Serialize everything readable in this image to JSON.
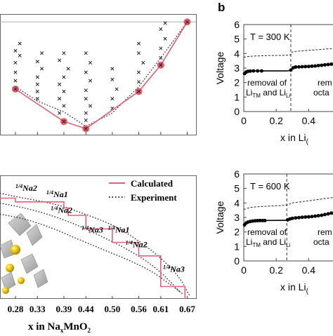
{
  "panel_label_b": "b",
  "chart_data": [
    {
      "id": "hull",
      "type": "scatter",
      "x_tick_labels": [
        "0.28",
        "0.33",
        "0.39",
        "0.44",
        "0.50",
        "0.56",
        "0.61",
        "0.67"
      ],
      "xlim": [
        0.245,
        0.69
      ],
      "ylim": [
        0.0,
        1.0
      ],
      "hull_points": [
        {
          "x": 0.28,
          "y": 0.38
        },
        {
          "x": 0.39,
          "y": 0.11
        },
        {
          "x": 0.44,
          "y": 0.05
        },
        {
          "x": 0.56,
          "y": 0.36
        },
        {
          "x": 0.61,
          "y": 0.58
        },
        {
          "x": 0.67,
          "y": 0.94
        }
      ],
      "experiment_line": [
        {
          "x": 0.28,
          "y": 0.4
        },
        {
          "x": 0.33,
          "y": 0.28
        },
        {
          "x": 0.39,
          "y": 0.19
        },
        {
          "x": 0.44,
          "y": 0.07
        },
        {
          "x": 0.5,
          "y": 0.18
        },
        {
          "x": 0.56,
          "y": 0.4
        },
        {
          "x": 0.61,
          "y": 0.64
        },
        {
          "x": 0.67,
          "y": 0.94
        }
      ],
      "structure_points": [
        {
          "x": 0.28,
          "y": 0.45
        },
        {
          "x": 0.28,
          "y": 0.52
        },
        {
          "x": 0.28,
          "y": 0.6
        },
        {
          "x": 0.29,
          "y": 0.66
        },
        {
          "x": 0.28,
          "y": 0.7
        },
        {
          "x": 0.29,
          "y": 0.76
        },
        {
          "x": 0.33,
          "y": 0.3
        },
        {
          "x": 0.33,
          "y": 0.36
        },
        {
          "x": 0.33,
          "y": 0.42
        },
        {
          "x": 0.33,
          "y": 0.48
        },
        {
          "x": 0.34,
          "y": 0.55
        },
        {
          "x": 0.33,
          "y": 0.61
        },
        {
          "x": 0.34,
          "y": 0.68
        },
        {
          "x": 0.38,
          "y": 0.18
        },
        {
          "x": 0.39,
          "y": 0.24
        },
        {
          "x": 0.38,
          "y": 0.3
        },
        {
          "x": 0.39,
          "y": 0.36
        },
        {
          "x": 0.38,
          "y": 0.42
        },
        {
          "x": 0.39,
          "y": 0.48
        },
        {
          "x": 0.4,
          "y": 0.55
        },
        {
          "x": 0.38,
          "y": 0.62
        },
        {
          "x": 0.39,
          "y": 0.68
        },
        {
          "x": 0.44,
          "y": 0.12
        },
        {
          "x": 0.44,
          "y": 0.18
        },
        {
          "x": 0.45,
          "y": 0.24
        },
        {
          "x": 0.44,
          "y": 0.3
        },
        {
          "x": 0.44,
          "y": 0.37
        },
        {
          "x": 0.45,
          "y": 0.45
        },
        {
          "x": 0.44,
          "y": 0.52
        },
        {
          "x": 0.45,
          "y": 0.6
        },
        {
          "x": 0.44,
          "y": 0.68
        },
        {
          "x": 0.5,
          "y": 0.22
        },
        {
          "x": 0.5,
          "y": 0.3
        },
        {
          "x": 0.51,
          "y": 0.38
        },
        {
          "x": 0.5,
          "y": 0.46
        },
        {
          "x": 0.5,
          "y": 0.55
        },
        {
          "x": 0.56,
          "y": 0.44
        },
        {
          "x": 0.56,
          "y": 0.52
        },
        {
          "x": 0.57,
          "y": 0.6
        },
        {
          "x": 0.56,
          "y": 0.68
        },
        {
          "x": 0.56,
          "y": 0.76
        },
        {
          "x": 0.61,
          "y": 0.64
        },
        {
          "x": 0.61,
          "y": 0.72
        },
        {
          "x": 0.62,
          "y": 0.8
        },
        {
          "x": 0.61,
          "y": 0.88
        },
        {
          "x": 0.62,
          "y": 0.93
        }
      ],
      "colors": {
        "hull_line": "#d9607a",
        "hull_marker": "#e0404f",
        "experiment": "#222222",
        "points": "#222222",
        "baseline": "#b0b0b0"
      }
    },
    {
      "id": "voltage",
      "type": "step",
      "xlabel": "x in Na",
      "xlabel_sub": "x",
      "xlabel_tail": "MnO",
      "xlabel_tail_sub": "2",
      "x_tick_labels": [
        "0.28",
        "0.33",
        "0.39",
        "0.44",
        "0.50",
        "0.56",
        "0.61",
        "0.67"
      ],
      "xlim": [
        0.245,
        0.69
      ],
      "ylim": [
        0.0,
        1.0
      ],
      "legend": [
        {
          "label": "Calculated",
          "style": "solid",
          "color": "#e0607a"
        },
        {
          "label": "Experiment",
          "style": "dotted",
          "color": "#222222"
        }
      ],
      "calculated_step": [
        {
          "x": 0.245,
          "y": 0.82
        },
        {
          "x": 0.28,
          "y": 0.82
        },
        {
          "x": 0.28,
          "y": 0.79
        },
        {
          "x": 0.39,
          "y": 0.79
        },
        {
          "x": 0.39,
          "y": 0.74
        },
        {
          "x": 0.4,
          "y": 0.74
        },
        {
          "x": 0.4,
          "y": 0.68
        },
        {
          "x": 0.44,
          "y": 0.68
        },
        {
          "x": 0.44,
          "y": 0.57
        },
        {
          "x": 0.5,
          "y": 0.57
        },
        {
          "x": 0.5,
          "y": 0.46
        },
        {
          "x": 0.56,
          "y": 0.46
        },
        {
          "x": 0.56,
          "y": 0.35
        },
        {
          "x": 0.61,
          "y": 0.35
        },
        {
          "x": 0.61,
          "y": 0.1
        },
        {
          "x": 0.665,
          "y": 0.1
        },
        {
          "x": 0.665,
          "y": 0.0
        }
      ],
      "experiment_curves": [
        [
          {
            "x": 0.245,
            "y": 0.78
          },
          {
            "x": 0.3,
            "y": 0.74
          },
          {
            "x": 0.36,
            "y": 0.68
          },
          {
            "x": 0.42,
            "y": 0.6
          },
          {
            "x": 0.48,
            "y": 0.5
          },
          {
            "x": 0.53,
            "y": 0.41
          },
          {
            "x": 0.58,
            "y": 0.3
          },
          {
            "x": 0.62,
            "y": 0.18
          },
          {
            "x": 0.655,
            "y": 0.05
          }
        ],
        [
          {
            "x": 0.245,
            "y": 0.69
          },
          {
            "x": 0.3,
            "y": 0.65
          },
          {
            "x": 0.36,
            "y": 0.58
          },
          {
            "x": 0.42,
            "y": 0.49
          },
          {
            "x": 0.48,
            "y": 0.4
          },
          {
            "x": 0.54,
            "y": 0.31
          },
          {
            "x": 0.59,
            "y": 0.22
          },
          {
            "x": 0.63,
            "y": 0.12
          },
          {
            "x": 0.66,
            "y": 0.04
          }
        ],
        [
          {
            "x": 0.245,
            "y": 0.86
          },
          {
            "x": 0.3,
            "y": 0.82
          },
          {
            "x": 0.37,
            "y": 0.77
          },
          {
            "x": 0.43,
            "y": 0.7
          },
          {
            "x": 0.5,
            "y": 0.6
          },
          {
            "x": 0.56,
            "y": 0.47
          },
          {
            "x": 0.61,
            "y": 0.33
          },
          {
            "x": 0.65,
            "y": 0.18
          },
          {
            "x": 0.675,
            "y": 0.03
          }
        ]
      ],
      "phase_labels": [
        {
          "frac": "1/4",
          "name": "Na2",
          "x": 0.28,
          "y": 0.88
        },
        {
          "frac": "1/4",
          "name": "Na1",
          "x": 0.35,
          "y": 0.83
        },
        {
          "frac": "1/4",
          "name": "Na2",
          "x": 0.36,
          "y": 0.7
        },
        {
          "frac": "1/4",
          "name": "Na3",
          "x": 0.43,
          "y": 0.54
        },
        {
          "frac": "1/4",
          "name": "Na1",
          "x": 0.49,
          "y": 0.54
        },
        {
          "frac": "1/4",
          "name": "Na2",
          "x": 0.53,
          "y": 0.42
        },
        {
          "frac": "1/4",
          "name": "Na3",
          "x": 0.615,
          "y": 0.22
        }
      ]
    },
    {
      "id": "v300",
      "type": "line",
      "ylabel": "Voltage",
      "annotation": "T = 300 K",
      "xlabel_prefix": "x in Li",
      "xlabel_suffix": "(",
      "y_tick_labels": [
        "0",
        "1",
        "2",
        "3",
        "4",
        "5",
        "6"
      ],
      "x_tick_labels": [
        "0",
        "0.2",
        "0.4"
      ],
      "xlim": [
        0.0,
        0.55
      ],
      "ylim": [
        0,
        6
      ],
      "divider_x": 0.29,
      "region_left": [
        "removal of",
        "Li",
        "TM",
        "and Li",
        "Li"
      ],
      "region_right": [
        "rem",
        "octa"
      ],
      "solid_line": [
        {
          "x": 0.0,
          "y": 2.55
        },
        {
          "x": 0.01,
          "y": 2.65
        },
        {
          "x": 0.03,
          "y": 2.78
        },
        {
          "x": 0.06,
          "y": 2.8
        },
        {
          "x": 0.27,
          "y": 2.8
        },
        {
          "x": 0.29,
          "y": 2.85
        },
        {
          "x": 0.3,
          "y": 3.05
        },
        {
          "x": 0.33,
          "y": 3.08
        },
        {
          "x": 0.38,
          "y": 3.1
        },
        {
          "x": 0.42,
          "y": 3.13
        },
        {
          "x": 0.46,
          "y": 3.17
        },
        {
          "x": 0.5,
          "y": 3.22
        },
        {
          "x": 0.55,
          "y": 3.28
        }
      ],
      "dots": [
        {
          "x": 0.005,
          "y": 2.62
        },
        {
          "x": 0.015,
          "y": 2.72
        },
        {
          "x": 0.025,
          "y": 2.77
        },
        {
          "x": 0.04,
          "y": 2.79
        },
        {
          "x": 0.06,
          "y": 2.8
        },
        {
          "x": 0.085,
          "y": 2.8
        },
        {
          "x": 0.11,
          "y": 2.8
        },
        {
          "x": 0.29,
          "y": 2.86
        },
        {
          "x": 0.305,
          "y": 3.02
        },
        {
          "x": 0.32,
          "y": 3.07
        },
        {
          "x": 0.34,
          "y": 3.08
        },
        {
          "x": 0.36,
          "y": 3.09
        },
        {
          "x": 0.38,
          "y": 3.1
        },
        {
          "x": 0.4,
          "y": 3.11
        },
        {
          "x": 0.42,
          "y": 3.13
        },
        {
          "x": 0.44,
          "y": 3.14
        },
        {
          "x": 0.46,
          "y": 3.17
        },
        {
          "x": 0.48,
          "y": 3.19
        },
        {
          "x": 0.5,
          "y": 3.22
        },
        {
          "x": 0.52,
          "y": 3.24
        },
        {
          "x": 0.54,
          "y": 3.27
        }
      ],
      "dashed_line": [
        {
          "x": 0.0,
          "y": 3.75
        },
        {
          "x": 0.05,
          "y": 3.82
        },
        {
          "x": 0.15,
          "y": 3.86
        },
        {
          "x": 0.28,
          "y": 3.9
        },
        {
          "x": 0.3,
          "y": 4.1
        },
        {
          "x": 0.35,
          "y": 4.18
        },
        {
          "x": 0.45,
          "y": 4.26
        },
        {
          "x": 0.55,
          "y": 4.35
        }
      ]
    },
    {
      "id": "v600",
      "type": "line",
      "ylabel": "Voltage",
      "annotation": "T = 600 K",
      "xlabel_prefix": "x in Li",
      "xlabel_suffix": "(",
      "y_tick_labels": [
        "0",
        "1",
        "2",
        "3",
        "4",
        "5",
        "6"
      ],
      "x_tick_labels": [
        "0",
        "0.2",
        "0.4"
      ],
      "xlim": [
        0.0,
        0.55
      ],
      "ylim": [
        0,
        6
      ],
      "divider_x": 0.265,
      "region_left": [
        "removal of",
        "Li",
        "TM",
        "and Li",
        "Li"
      ],
      "region_right": [
        "rem",
        "octa"
      ],
      "solid_line": [
        {
          "x": 0.0,
          "y": 2.35
        },
        {
          "x": 0.01,
          "y": 2.55
        },
        {
          "x": 0.03,
          "y": 2.7
        },
        {
          "x": 0.08,
          "y": 2.78
        },
        {
          "x": 0.26,
          "y": 2.8
        },
        {
          "x": 0.275,
          "y": 2.86
        },
        {
          "x": 0.3,
          "y": 2.95
        },
        {
          "x": 0.35,
          "y": 3.0
        },
        {
          "x": 0.4,
          "y": 3.04
        },
        {
          "x": 0.45,
          "y": 3.1
        },
        {
          "x": 0.5,
          "y": 3.2
        },
        {
          "x": 0.55,
          "y": 3.32
        }
      ],
      "dots": [
        {
          "x": 0.005,
          "y": 2.5
        },
        {
          "x": 0.015,
          "y": 2.62
        },
        {
          "x": 0.025,
          "y": 2.68
        },
        {
          "x": 0.04,
          "y": 2.72
        },
        {
          "x": 0.055,
          "y": 2.75
        },
        {
          "x": 0.07,
          "y": 2.77
        },
        {
          "x": 0.085,
          "y": 2.78
        },
        {
          "x": 0.1,
          "y": 2.79
        },
        {
          "x": 0.115,
          "y": 2.79
        },
        {
          "x": 0.13,
          "y": 2.79
        },
        {
          "x": 0.27,
          "y": 2.83
        },
        {
          "x": 0.285,
          "y": 2.9
        },
        {
          "x": 0.3,
          "y": 2.94
        },
        {
          "x": 0.32,
          "y": 2.97
        },
        {
          "x": 0.34,
          "y": 2.99
        },
        {
          "x": 0.36,
          "y": 3.01
        },
        {
          "x": 0.38,
          "y": 3.03
        },
        {
          "x": 0.4,
          "y": 3.04
        },
        {
          "x": 0.42,
          "y": 3.06
        },
        {
          "x": 0.44,
          "y": 3.09
        },
        {
          "x": 0.46,
          "y": 3.12
        },
        {
          "x": 0.48,
          "y": 3.15
        },
        {
          "x": 0.5,
          "y": 3.2
        },
        {
          "x": 0.52,
          "y": 3.25
        },
        {
          "x": 0.54,
          "y": 3.3
        }
      ],
      "dashed_line": [
        {
          "x": 0.0,
          "y": 3.55
        },
        {
          "x": 0.05,
          "y": 3.7
        },
        {
          "x": 0.15,
          "y": 3.78
        },
        {
          "x": 0.26,
          "y": 3.85
        },
        {
          "x": 0.3,
          "y": 4.0
        },
        {
          "x": 0.38,
          "y": 4.12
        },
        {
          "x": 0.46,
          "y": 4.24
        },
        {
          "x": 0.55,
          "y": 4.38
        }
      ]
    }
  ]
}
